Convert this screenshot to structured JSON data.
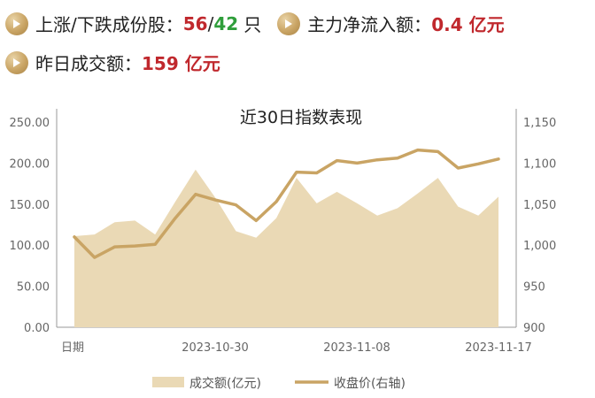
{
  "stats": {
    "row1": {
      "updown_label": "上涨/下跌成份股：",
      "up_count": "56",
      "slash": "/",
      "down_count": "42",
      "count_unit": "只",
      "flow_label": "主力净流入额：",
      "flow_value": "0.4 亿元"
    },
    "row2": {
      "turnover_label": "昨日成交额：",
      "turnover_value": "159 亿元"
    }
  },
  "colors": {
    "up": "#c0282d",
    "down": "#2f9e3b",
    "area": "#ead9b5",
    "line": "#c9a464"
  },
  "chart_data": {
    "type": "area+line",
    "title": "近30日指数表现",
    "x_first_label": "日期",
    "x_ticks": [
      "2023-10-30",
      "2023-11-08",
      "2023-11-17"
    ],
    "left_axis": {
      "ticks": [
        "250.00",
        "200.00",
        "150.00",
        "100.00",
        "50.00",
        "0.00"
      ],
      "ylim": [
        0,
        250
      ]
    },
    "right_axis": {
      "ticks": [
        "1,150",
        "1,100",
        "1,050",
        "1,000",
        "950",
        "900"
      ],
      "ylim": [
        900,
        1150
      ]
    },
    "series": [
      {
        "name": "成交额(亿元)",
        "type": "area",
        "axis": "left",
        "values": [
          111,
          113,
          128,
          130,
          113,
          153,
          192,
          157,
          117,
          109,
          133,
          182,
          151,
          165,
          151,
          136,
          145,
          163,
          182,
          147,
          136,
          159
        ]
      },
      {
        "name": "收盘价(右轴)",
        "type": "line",
        "axis": "right",
        "values": [
          1010,
          985,
          998,
          999,
          1001,
          1033,
          1062,
          1055,
          1049,
          1030,
          1053,
          1089,
          1088,
          1103,
          1100,
          1104,
          1106,
          1116,
          1114,
          1094,
          1099,
          1105
        ]
      }
    ],
    "legend": {
      "position": "bottom"
    }
  }
}
